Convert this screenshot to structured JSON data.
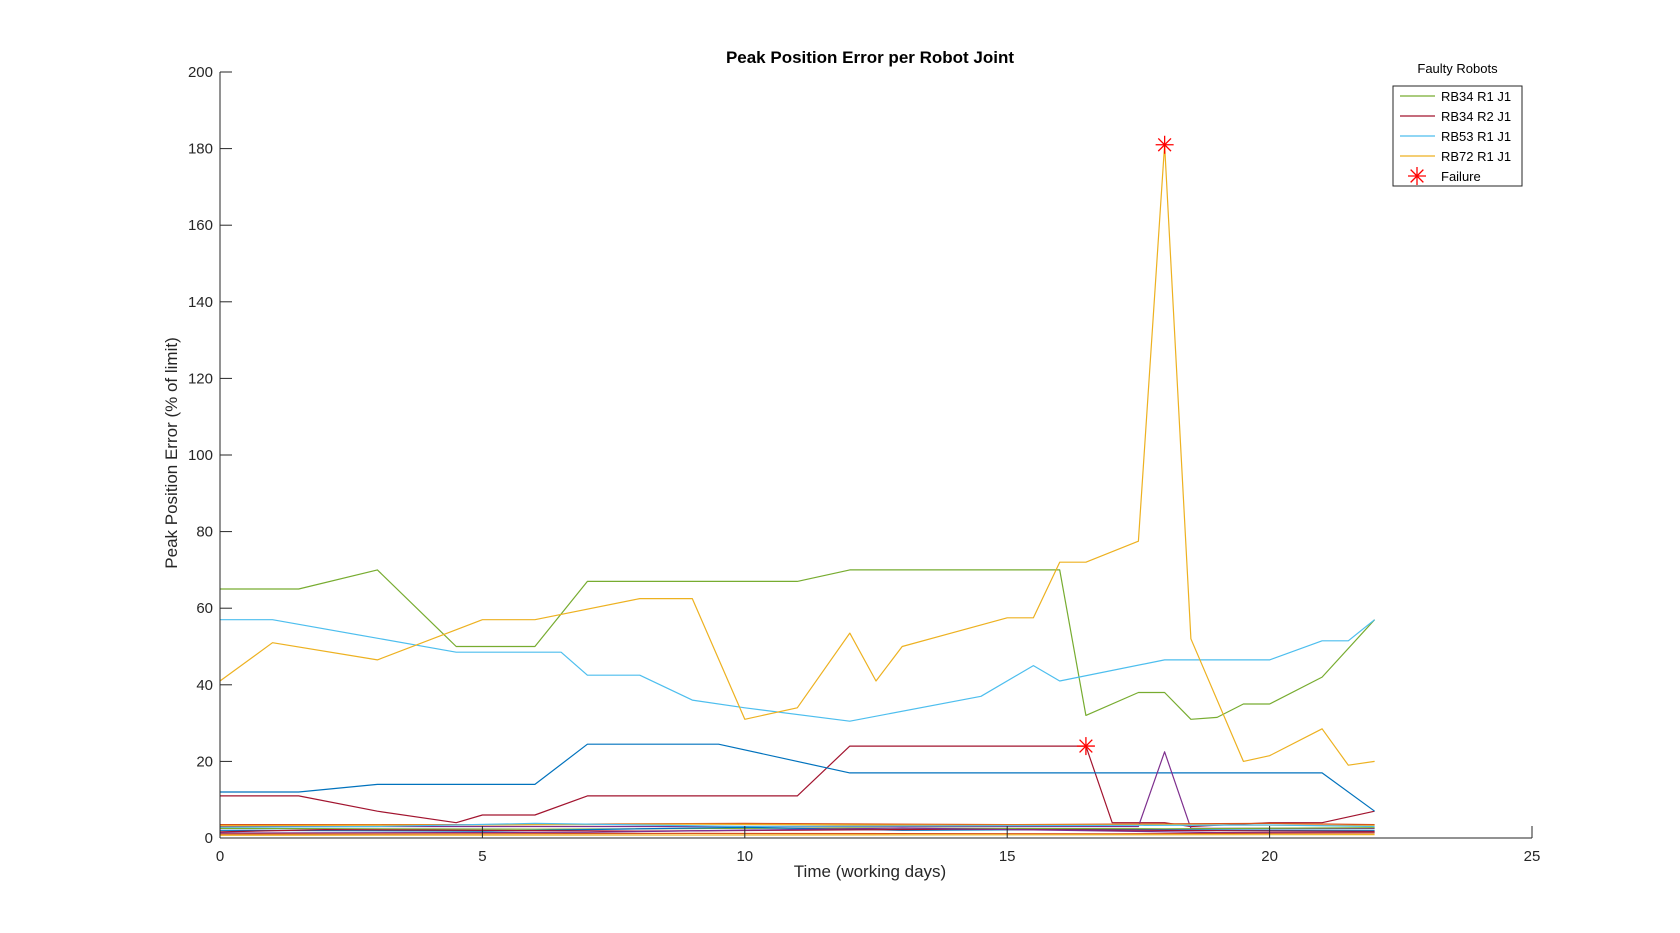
{
  "chart_data": {
    "type": "line",
    "title": "Peak Position Error per Robot Joint",
    "xlabel": "Time (working days)",
    "ylabel": "Peak Position Error (% of limit)",
    "xlim": [
      0,
      25
    ],
    "ylim": [
      0,
      200
    ],
    "xticks": [
      0,
      5,
      10,
      15,
      20,
      25
    ],
    "yticks": [
      0,
      20,
      40,
      60,
      80,
      100,
      120,
      140,
      160,
      180,
      200
    ],
    "grid": false,
    "legend": {
      "title": "Faulty Robots",
      "placement": "top-right",
      "entries": [
        "RB34 R1 J1",
        "RB34 R2 J1",
        "RB53 R1 J1",
        "RB72 R1 J1",
        "Failure"
      ]
    },
    "series": [
      {
        "name": "RB34 R1 J1",
        "color": "#77ac30",
        "x": [
          0,
          1.5,
          3,
          4.5,
          6,
          7,
          11,
          12,
          16,
          16.5,
          17.5,
          18,
          18.5,
          19,
          19.5,
          20,
          21,
          22
        ],
        "y": [
          65,
          65,
          70,
          50,
          50,
          67,
          67,
          70,
          70,
          32,
          38,
          38,
          31,
          31.5,
          35,
          35,
          42,
          57
        ]
      },
      {
        "name": "RB34 R2 J1",
        "color": "#a2142f",
        "x": [
          0,
          1.5,
          3,
          4.5,
          5,
          6,
          7,
          11,
          12,
          16.5,
          17,
          17.5,
          18,
          18.5,
          20,
          21,
          22
        ],
        "y": [
          11,
          11,
          7,
          4,
          6,
          6,
          11,
          11,
          24,
          24,
          4,
          4,
          4,
          3,
          4,
          4,
          7
        ]
      },
      {
        "name": "RB53 R1 J1",
        "color": "#4dbeee",
        "x": [
          0,
          1,
          4.5,
          6.5,
          7,
          8,
          9,
          10,
          12,
          14.5,
          15.5,
          16,
          18,
          20,
          21,
          21.5,
          22
        ],
        "y": [
          57,
          57,
          48.5,
          48.5,
          42.5,
          42.5,
          36,
          34,
          30.5,
          37,
          45,
          41,
          46.5,
          46.5,
          51.5,
          51.5,
          57
        ]
      },
      {
        "name": "RB72 R1 J1",
        "color": "#edb120",
        "x": [
          0,
          1,
          3,
          5,
          6,
          8,
          9,
          10,
          11,
          12,
          12.5,
          13,
          15,
          15.5,
          16,
          16.5,
          17.5,
          18,
          18.5,
          19.5,
          20,
          21,
          21.5,
          22
        ],
        "y": [
          41,
          51,
          46.5,
          57,
          57,
          62.5,
          62.5,
          31,
          34,
          53.5,
          41,
          50,
          57.5,
          57.5,
          72,
          72,
          77.5,
          181,
          52,
          20,
          21.5,
          28.5,
          19,
          20
        ]
      },
      {
        "color": "#0072bd",
        "x": [
          0,
          1.5,
          3,
          6,
          7,
          9.5,
          12,
          21,
          22
        ],
        "y": [
          12,
          12,
          14,
          14,
          24.5,
          24.5,
          17,
          17,
          7
        ]
      },
      {
        "color": "#7e2f8e",
        "x": [
          0,
          17.5,
          18,
          18.5,
          22
        ],
        "y": [
          3,
          3,
          22.5,
          2.5,
          2.5
        ]
      },
      {
        "color": "#d95319",
        "x": [
          0,
          5,
          10,
          15,
          20,
          22
        ],
        "y": [
          3.5,
          3.5,
          3.8,
          3.5,
          3.8,
          3.5
        ]
      },
      {
        "color": "#edb120",
        "x": [
          0,
          4,
          9,
          14,
          18,
          22
        ],
        "y": [
          3.2,
          3.4,
          3.6,
          3.3,
          3.5,
          3.2
        ]
      },
      {
        "color": "#4dbeee",
        "x": [
          0,
          3,
          6,
          10,
          15,
          20,
          22
        ],
        "y": [
          2.8,
          3,
          3.8,
          3,
          3.2,
          3.4,
          3
        ]
      },
      {
        "color": "#77ac30",
        "x": [
          0,
          6,
          12,
          18,
          22
        ],
        "y": [
          2.5,
          2.3,
          2.6,
          2.4,
          2.7
        ]
      },
      {
        "color": "#0072bd",
        "x": [
          0,
          5,
          10,
          13,
          16,
          22
        ],
        "y": [
          2,
          1.8,
          2.8,
          2,
          2.2,
          2
        ]
      },
      {
        "color": "#a2142f",
        "x": [
          0,
          2,
          8,
          14,
          22
        ],
        "y": [
          1.6,
          2.2,
          1.8,
          2.3,
          1.7
        ]
      },
      {
        "color": "#7e2f8e",
        "x": [
          0,
          7,
          13,
          19,
          22
        ],
        "y": [
          1.3,
          1.5,
          2.6,
          1.4,
          1.5
        ]
      },
      {
        "color": "#d95319",
        "x": [
          0,
          9,
          17,
          22
        ],
        "y": [
          1,
          1.2,
          1.1,
          1.3
        ]
      },
      {
        "color": "#edb120",
        "x": [
          0,
          22
        ],
        "y": [
          0.7,
          0.9
        ]
      }
    ],
    "failures": {
      "name": "Failure",
      "color": "#ff0000",
      "points": [
        {
          "x": 16.5,
          "y": 24
        },
        {
          "x": 18,
          "y": 181
        }
      ]
    }
  }
}
